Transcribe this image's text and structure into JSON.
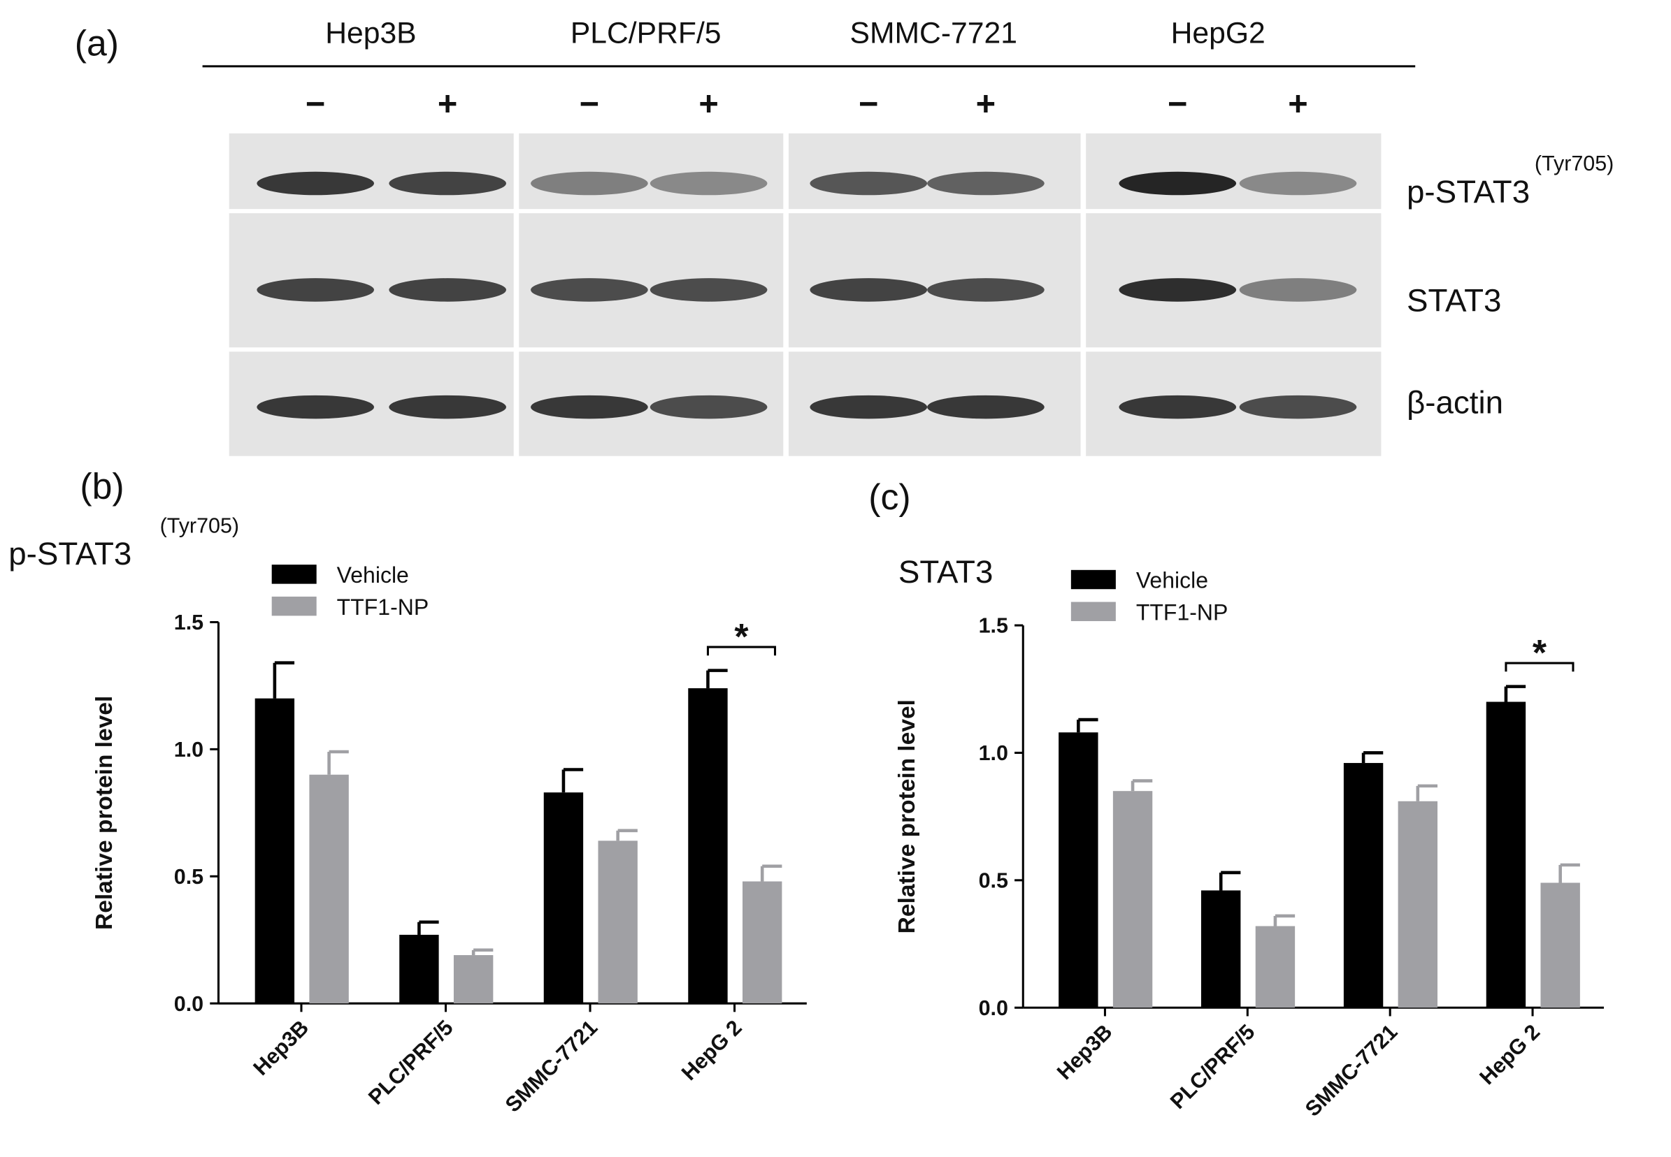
{
  "blot": {
    "panel_label": "(a)",
    "cell_lines": [
      "Hep3B",
      "PLC/PRF/5",
      "SMMC-7721",
      "HepG2"
    ],
    "treatments": [
      "−",
      "+",
      "−",
      "+",
      "−",
      "+",
      "−",
      "+"
    ],
    "rows": [
      {
        "label": "p-STAT3",
        "superscript": "(Tyr705)"
      },
      {
        "label": "STAT3"
      },
      {
        "label": "β-actin"
      }
    ]
  },
  "chart_data": [
    {
      "type": "bar",
      "panel_label": "(b)",
      "title": "p-STAT3",
      "title_superscript": "(Tyr705)",
      "y_label": "Relative protein level",
      "categories": [
        "Hep3B",
        "PLC/PRF/5",
        "SMMC-7721",
        "HepG 2"
      ],
      "series": [
        {
          "name": "Vehicle",
          "color": "#000000",
          "values": [
            1.2,
            0.27,
            0.83,
            1.24
          ],
          "errors": [
            0.14,
            0.05,
            0.09,
            0.07
          ]
        },
        {
          "name": "TTF1-NP",
          "color": "#a0a0a4",
          "values": [
            0.9,
            0.19,
            0.64,
            0.48
          ],
          "errors": [
            0.09,
            0.02,
            0.04,
            0.06
          ]
        }
      ],
      "ylim": [
        0,
        1.5
      ],
      "yticks": [
        {
          "value": 0,
          "label": "0.0"
        },
        0.5,
        {
          "value": 1,
          "label": "1.0"
        },
        1.5
      ],
      "annotation": "*"
    },
    {
      "type": "bar",
      "panel_label": "(c)",
      "title": "STAT3",
      "y_label": "Relative protein level",
      "categories": [
        "Hep3B",
        "PLC/PRF/5",
        "SMMC-7721",
        "HepG 2"
      ],
      "series": [
        {
          "name": "Vehicle",
          "color": "#000000",
          "values": [
            1.08,
            0.46,
            0.96,
            1.2
          ],
          "errors": [
            0.05,
            0.07,
            0.04,
            0.06
          ]
        },
        {
          "name": "TTF1-NP",
          "color": "#a0a0a4",
          "values": [
            0.85,
            0.32,
            0.81,
            0.49
          ],
          "errors": [
            0.04,
            0.04,
            0.06,
            0.07
          ]
        }
      ],
      "ylim": [
        0,
        1.5
      ],
      "yticks": [
        {
          "value": 0,
          "label": "0.0"
        },
        0.5,
        {
          "value": 1,
          "label": "1.0"
        },
        1.5
      ],
      "annotation": "*"
    }
  ]
}
